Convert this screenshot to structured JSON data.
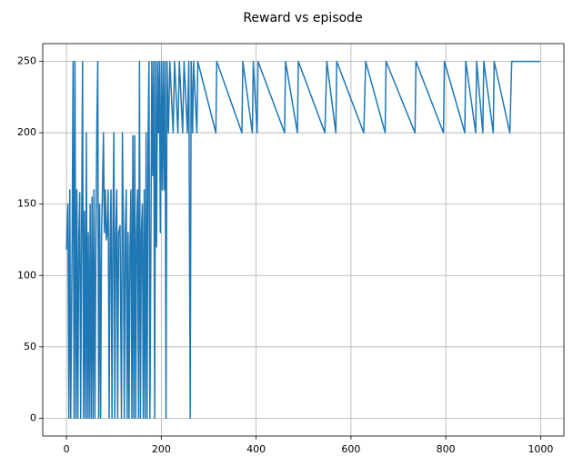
{
  "chart_data": {
    "type": "line",
    "title": "Reward vs episode",
    "x": [
      0,
      3,
      5,
      7,
      9,
      12,
      14,
      16,
      18,
      20,
      22,
      24,
      26,
      28,
      30,
      32,
      34,
      36,
      38,
      40,
      42,
      44,
      46,
      48,
      50,
      52,
      54,
      56,
      58,
      60,
      62,
      64,
      66,
      68,
      70,
      72,
      74,
      76,
      78,
      80,
      82,
      84,
      86,
      88,
      90,
      92,
      94,
      96,
      98,
      100,
      102,
      104,
      106,
      108,
      110,
      113,
      116,
      118,
      120,
      122,
      124,
      126,
      128,
      130,
      132,
      134,
      136,
      138,
      140,
      142,
      144,
      146,
      148,
      150,
      152,
      154,
      156,
      158,
      160,
      162,
      164,
      166,
      168,
      170,
      172,
      174,
      176,
      178,
      180,
      182,
      184,
      186,
      188,
      190,
      192,
      194,
      196,
      198,
      200,
      202,
      204,
      206,
      208,
      210,
      212,
      215,
      218,
      225,
      228,
      235,
      238,
      245,
      248,
      255,
      258,
      261,
      263,
      266,
      268,
      275,
      277,
      315,
      317,
      370,
      372,
      392,
      394,
      402,
      404,
      460,
      462,
      487,
      489,
      545,
      549,
      568,
      570,
      627,
      631,
      672,
      674,
      735,
      737,
      795,
      797,
      840,
      842,
      863,
      865,
      878,
      880,
      900,
      902,
      935,
      939,
      999
    ],
    "series": [
      {
        "name": "reward",
        "color": "#1f77b4",
        "values": [
          118,
          150,
          0,
          160,
          0,
          125,
          250,
          0,
          250,
          0,
          160,
          0,
          125,
          158,
          0,
          135,
          250,
          0,
          145,
          0,
          200,
          0,
          130,
          0,
          150,
          0,
          155,
          0,
          160,
          0,
          120,
          200,
          250,
          0,
          150,
          0,
          130,
          160,
          200,
          130,
          160,
          125,
          130,
          160,
          0,
          125,
          160,
          0,
          130,
          200,
          0,
          130,
          160,
          0,
          130,
          135,
          0,
          200,
          130,
          0,
          130,
          160,
          0,
          130,
          0,
          120,
          160,
          0,
          198,
          0,
          198,
          0,
          130,
          160,
          0,
          250,
          0,
          130,
          150,
          0,
          160,
          0,
          200,
          0,
          190,
          250,
          0,
          120,
          250,
          170,
          250,
          0,
          250,
          120,
          250,
          200,
          250,
          130,
          250,
          160,
          250,
          160,
          250,
          0,
          250,
          200,
          250,
          200,
          250,
          200,
          250,
          200,
          250,
          200,
          250,
          0,
          250,
          200,
          250,
          200,
          250,
          200,
          250,
          200,
          250,
          200,
          250,
          200,
          250,
          200,
          250,
          200,
          250,
          200,
          250,
          200,
          250,
          200,
          250,
          200,
          250,
          200,
          250,
          200,
          250,
          200,
          250,
          200,
          250,
          200,
          250,
          200,
          250,
          200,
          250,
          250
        ]
      }
    ],
    "xlim": [
      -50,
      1049
    ],
    "ylim": [
      -12.5,
      262.5
    ],
    "xticks": [
      0,
      200,
      400,
      600,
      800,
      1000
    ],
    "yticks": [
      0,
      50,
      100,
      150,
      200,
      250
    ],
    "grid": true
  }
}
